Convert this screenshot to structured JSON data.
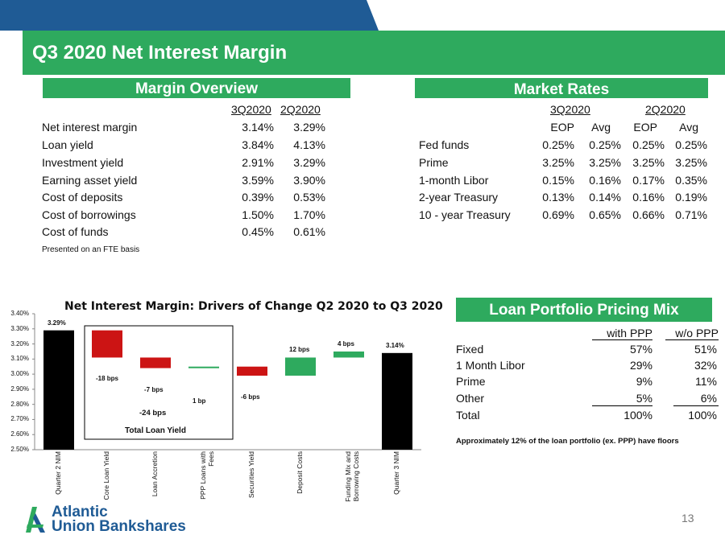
{
  "header": {
    "title": "Q3 2020 Net Interest Margin",
    "page_number": "13"
  },
  "colors": {
    "green": "#2eaa5e",
    "blue": "#1f5b95",
    "red": "#cc1414"
  },
  "margin_overview": {
    "heading": "Margin Overview",
    "columns": [
      "3Q2020",
      "2Q2020"
    ],
    "rows": [
      {
        "label": "Net interest margin",
        "q3": "3.14%",
        "q2": "3.29%"
      },
      {
        "label": "Loan yield",
        "q3": "3.84%",
        "q2": "4.13%"
      },
      {
        "label": "Investment yield",
        "q3": "2.91%",
        "q2": "3.29%"
      },
      {
        "label": "Earning asset yield",
        "q3": "3.59%",
        "q2": "3.90%"
      },
      {
        "label": "Cost of deposits",
        "q3": "0.39%",
        "q2": "0.53%"
      },
      {
        "label": "Cost of borrowings",
        "q3": "1.50%",
        "q2": "1.70%"
      },
      {
        "label": "Cost of funds",
        "q3": "0.45%",
        "q2": "0.61%"
      }
    ],
    "footnote": "Presented on an FTE basis"
  },
  "market_rates": {
    "heading": "Market Rates",
    "periods": [
      "3Q2020",
      "2Q2020"
    ],
    "subcolumns": [
      "EOP",
      "Avg",
      "EOP",
      "Avg"
    ],
    "rows": [
      {
        "label": "Fed funds",
        "v": [
          "0.25%",
          "0.25%",
          "0.25%",
          "0.25%"
        ]
      },
      {
        "label": "Prime",
        "v": [
          "3.25%",
          "3.25%",
          "3.25%",
          "3.25%"
        ]
      },
      {
        "label": "1-month Libor",
        "v": [
          "0.15%",
          "0.16%",
          "0.17%",
          "0.35%"
        ]
      },
      {
        "label": "2-year Treasury",
        "v": [
          "0.13%",
          "0.14%",
          "0.16%",
          "0.19%"
        ]
      },
      {
        "label": "10 - year Treasury",
        "v": [
          "0.69%",
          "0.65%",
          "0.66%",
          "0.71%"
        ]
      }
    ]
  },
  "loan_mix": {
    "heading": "Loan Portfolio Pricing Mix",
    "columns": [
      "with PPP",
      "w/o PPP"
    ],
    "rows": [
      {
        "label": "Fixed",
        "a": "57%",
        "b": "51%"
      },
      {
        "label": "1 Month Libor",
        "a": "29%",
        "b": "32%"
      },
      {
        "label": "Prime",
        "a": "9%",
        "b": "11%"
      },
      {
        "label": "Other",
        "a": "5%",
        "b": "6%"
      },
      {
        "label": "Total",
        "a": "100%",
        "b": "100%"
      }
    ],
    "footnote": "Approximately 12% of the loan portfolio (ex. PPP) have floors"
  },
  "chart_data": {
    "type": "bar",
    "title": "Net Interest Margin: Drivers of Change Q2 2020 to Q3 2020",
    "ylim": [
      2.5,
      3.4
    ],
    "yticks": [
      "2.50%",
      "2.60%",
      "2.70%",
      "2.80%",
      "2.90%",
      "3.00%",
      "3.10%",
      "3.20%",
      "3.30%",
      "3.40%"
    ],
    "categories": [
      "Quarter 2 NIM",
      "Core Loan Yield",
      "Loan Accretion",
      "PPP Loans with Fees",
      "Securities Yield",
      "Deposit Costs",
      "Funding Mix and Borrowing Costs",
      "Quarter 3 NIM"
    ],
    "bars": [
      {
        "start": 2.5,
        "end": 3.29,
        "kind": "total",
        "label": "3.29%"
      },
      {
        "start": 3.29,
        "end": 3.11,
        "kind": "decrease",
        "label": "-18 bps"
      },
      {
        "start": 3.11,
        "end": 3.04,
        "kind": "decrease",
        "label": "-7 bps"
      },
      {
        "start": 3.04,
        "end": 3.05,
        "kind": "increase",
        "label": "1 bp"
      },
      {
        "start": 3.05,
        "end": 2.99,
        "kind": "decrease",
        "label": "-6 bps"
      },
      {
        "start": 2.99,
        "end": 3.11,
        "kind": "increase",
        "label": "12 bps"
      },
      {
        "start": 3.11,
        "end": 3.15,
        "kind": "increase",
        "label": "4 bps"
      },
      {
        "start": 2.5,
        "end": 3.14,
        "kind": "total",
        "label": "3.14%"
      }
    ],
    "group_box": {
      "subtotal": "-24 bps",
      "caption": "Total Loan Yield"
    }
  },
  "logo": {
    "line1": "Atlantic",
    "line2": "Union Bankshares"
  }
}
